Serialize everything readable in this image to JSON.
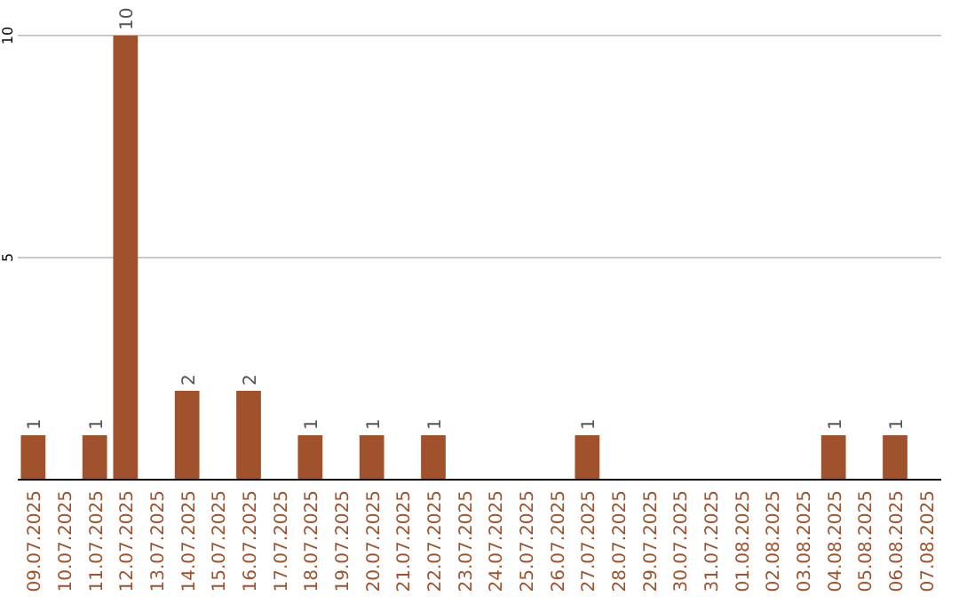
{
  "chart_data": {
    "type": "bar",
    "categories": [
      "09.07.2025",
      "10.07.2025",
      "11.07.2025",
      "12.07.2025",
      "13.07.2025",
      "14.07.2025",
      "15.07.2025",
      "16.07.2025",
      "17.07.2025",
      "18.07.2025",
      "19.07.2025",
      "20.07.2025",
      "21.07.2025",
      "22.07.2025",
      "23.07.2025",
      "24.07.2025",
      "25.07.2025",
      "26.07.2025",
      "27.07.2025",
      "28.07.2025",
      "29.07.2025",
      "30.07.2025",
      "31.07.2025",
      "01.08.2025",
      "02.08.2025",
      "03.08.2025",
      "04.08.2025",
      "05.08.2025",
      "06.08.2025",
      "07.08.2025"
    ],
    "values": [
      1,
      0,
      1,
      10,
      0,
      2,
      0,
      2,
      0,
      1,
      0,
      1,
      0,
      1,
      0,
      0,
      0,
      0,
      1,
      0,
      0,
      0,
      0,
      0,
      0,
      0,
      1,
      0,
      1,
      0
    ],
    "value_labels": [
      "1",
      null,
      "1",
      "10",
      null,
      "2",
      null,
      "2",
      null,
      "1",
      null,
      "1",
      null,
      "1",
      null,
      null,
      null,
      null,
      "1",
      null,
      null,
      null,
      null,
      null,
      null,
      null,
      "1",
      null,
      "1",
      null
    ],
    "color": "#a0522d",
    "ylim": [
      0,
      10
    ],
    "yticks": [
      5,
      10
    ],
    "grid": "y"
  }
}
